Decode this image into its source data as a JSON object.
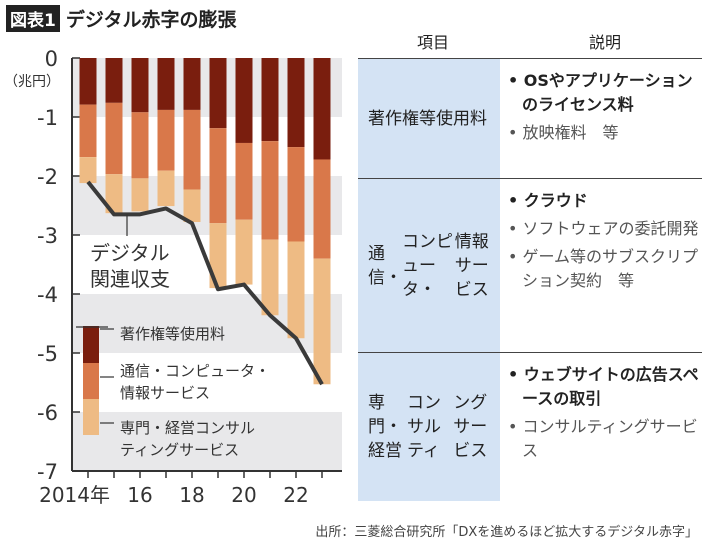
{
  "title": {
    "badge": "図表1",
    "text": "デジタル赤字の膨張"
  },
  "chart_data": {
    "type": "bar",
    "stacked": true,
    "unit_label": "（兆円）",
    "ylim": [
      -7,
      0
    ],
    "yticks": [
      "0",
      "-1",
      "-2",
      "-3",
      "-4",
      "-5",
      "-6",
      "-7"
    ],
    "x": [
      2014,
      2015,
      2016,
      2017,
      2018,
      2019,
      2020,
      2021,
      2022,
      2023
    ],
    "xtick_labels": [
      "2014年",
      "16",
      "18",
      "20",
      "22"
    ],
    "series": [
      {
        "name": "著作権等使用料",
        "color": "#7a1e0e",
        "values": [
          -0.79,
          -0.76,
          -0.92,
          -0.88,
          -0.88,
          -1.19,
          -1.44,
          -1.41,
          -1.51,
          -1.72
        ]
      },
      {
        "name": "通信・コンピュータ・情報サービス",
        "color": "#d9784a",
        "values": [
          -0.89,
          -1.21,
          -1.12,
          -1.03,
          -1.35,
          -1.61,
          -1.3,
          -1.67,
          -1.6,
          -1.68
        ]
      },
      {
        "name": "専門・経営コンサルティングサービス",
        "color": "#eebb84",
        "values": [
          -0.44,
          -0.66,
          -0.56,
          -0.6,
          -0.55,
          -1.1,
          -1.1,
          -1.28,
          -1.64,
          -2.13
        ]
      }
    ],
    "line": {
      "name": "デジタル関連収支",
      "color": "#3a3a3a",
      "values": [
        -2.1,
        -2.65,
        -2.65,
        -2.55,
        -2.8,
        -3.92,
        -3.84,
        -4.36,
        -4.75,
        -5.53
      ]
    },
    "legend_lines": [
      [
        "著作権等使用料"
      ],
      [
        "通信・コンピュータ・",
        "情報サービス"
      ],
      [
        "専門・経営コンサル",
        "ティングサービス"
      ]
    ],
    "line_label": [
      "デジタル",
      "関連収支"
    ],
    "grid": "alternating bands"
  },
  "table": {
    "headers": [
      "項目",
      "説明"
    ],
    "rows": [
      {
        "item": [
          "著作権等",
          "使用料"
        ],
        "desc": [
          {
            "text": "OSやアプリケーションのライセンス料",
            "bold": true
          },
          {
            "text": "放映権料　等",
            "bold": false
          }
        ]
      },
      {
        "item": [
          "通信・",
          "コンピュータ・",
          "情報サービス"
        ],
        "desc": [
          {
            "text": "クラウド",
            "bold": true
          },
          {
            "text": "ソフトウェアの委託開発",
            "bold": false
          },
          {
            "text": "ゲーム等のサブスクリプション契約　等",
            "bold": false
          }
        ]
      },
      {
        "item": [
          "専門・経営",
          "コンサルティ",
          "ングサービス"
        ],
        "desc": [
          {
            "text": "ウェブサイトの広告スペースの取引",
            "bold": true
          },
          {
            "text": "コンサルティングサービス",
            "bold": false
          }
        ]
      }
    ]
  },
  "source": "出所：三菱総合研究所「DXを進めるほど拡大するデジタル赤字」"
}
